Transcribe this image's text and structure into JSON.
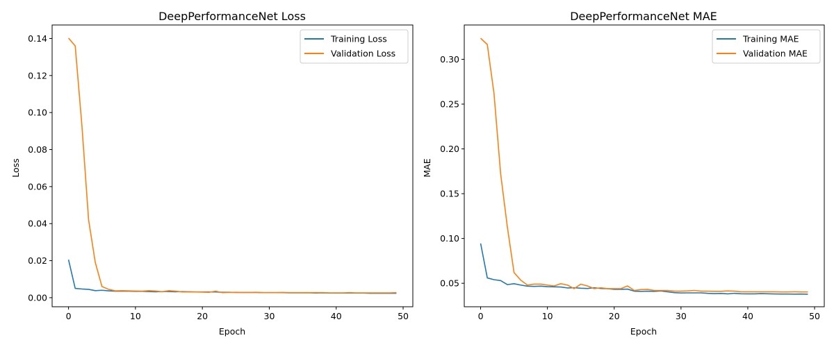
{
  "colors": {
    "training": "#1f77b4",
    "validation": "#ff7f0e"
  },
  "chart_data": [
    {
      "type": "line",
      "title": "DeepPerformanceNet Loss",
      "xlabel": "Epoch",
      "ylabel": "Loss",
      "xlim": [
        -2.45,
        51.45
      ],
      "ylim": [
        -0.0049,
        0.1473
      ],
      "xticks": [
        0,
        10,
        20,
        30,
        40,
        50
      ],
      "yticks": [
        0.0,
        0.02,
        0.04,
        0.06,
        0.08,
        0.1,
        0.12,
        0.14
      ],
      "ytick_labels": [
        "0.00",
        "0.02",
        "0.04",
        "0.06",
        "0.08",
        "0.10",
        "0.12",
        "0.14"
      ],
      "grid": false,
      "legend": "upper-right",
      "x": [
        0,
        1,
        2,
        3,
        4,
        5,
        6,
        7,
        8,
        9,
        10,
        11,
        12,
        13,
        14,
        15,
        16,
        17,
        18,
        19,
        20,
        21,
        22,
        23,
        24,
        25,
        26,
        27,
        28,
        29,
        30,
        31,
        32,
        33,
        34,
        35,
        36,
        37,
        38,
        39,
        40,
        41,
        42,
        43,
        44,
        45,
        46,
        47,
        48,
        49
      ],
      "series": [
        {
          "name": "Training Loss",
          "values": [
            0.0205,
            0.005,
            0.0047,
            0.0045,
            0.0038,
            0.004,
            0.0037,
            0.0035,
            0.0035,
            0.0035,
            0.0034,
            0.0034,
            0.0033,
            0.0032,
            0.0033,
            0.0033,
            0.0032,
            0.0033,
            0.0032,
            0.0031,
            0.0031,
            0.0031,
            0.0031,
            0.0029,
            0.0029,
            0.0028,
            0.0028,
            0.0028,
            0.0028,
            0.0027,
            0.0027,
            0.0027,
            0.0027,
            0.0026,
            0.0026,
            0.0026,
            0.0026,
            0.0025,
            0.0026,
            0.0025,
            0.0025,
            0.0025,
            0.0025,
            0.0025,
            0.0025,
            0.0024,
            0.0024,
            0.0024,
            0.0024,
            0.0024
          ]
        },
        {
          "name": "Validation Loss",
          "values": [
            0.1402,
            0.136,
            0.093,
            0.042,
            0.019,
            0.006,
            0.0045,
            0.0037,
            0.0038,
            0.0037,
            0.0036,
            0.0035,
            0.0038,
            0.0036,
            0.0032,
            0.0038,
            0.0035,
            0.0031,
            0.0031,
            0.0031,
            0.003,
            0.0029,
            0.0035,
            0.0027,
            0.0028,
            0.0029,
            0.0028,
            0.0028,
            0.0029,
            0.0027,
            0.0027,
            0.0027,
            0.0028,
            0.0027,
            0.0027,
            0.0027,
            0.0027,
            0.0027,
            0.0027,
            0.0026,
            0.0026,
            0.0026,
            0.0027,
            0.0026,
            0.0026,
            0.0026,
            0.0026,
            0.0026,
            0.0026,
            0.0027
          ]
        }
      ]
    },
    {
      "type": "line",
      "title": "DeepPerformanceNet MAE",
      "xlabel": "Epoch",
      "ylabel": "MAE",
      "xlim": [
        -2.45,
        51.45
      ],
      "ylim": [
        0.0238,
        0.3383
      ],
      "xticks": [
        0,
        10,
        20,
        30,
        40,
        50
      ],
      "yticks": [
        0.05,
        0.1,
        0.15,
        0.2,
        0.25,
        0.3
      ],
      "ytick_labels": [
        "0.05",
        "0.10",
        "0.15",
        "0.20",
        "0.25",
        "0.30"
      ],
      "grid": false,
      "legend": "upper-right",
      "x": [
        0,
        1,
        2,
        3,
        4,
        5,
        6,
        7,
        8,
        9,
        10,
        11,
        12,
        13,
        14,
        15,
        16,
        17,
        18,
        19,
        20,
        21,
        22,
        23,
        24,
        25,
        26,
        27,
        28,
        29,
        30,
        31,
        32,
        33,
        34,
        35,
        36,
        37,
        38,
        39,
        40,
        41,
        42,
        43,
        44,
        45,
        46,
        47,
        48,
        49
      ],
      "series": [
        {
          "name": "Training MAE",
          "values": [
            0.0945,
            0.056,
            0.054,
            0.053,
            0.0485,
            0.0495,
            0.048,
            0.0468,
            0.0465,
            0.0468,
            0.0462,
            0.046,
            0.0458,
            0.0448,
            0.045,
            0.0445,
            0.0442,
            0.045,
            0.0442,
            0.044,
            0.0432,
            0.0432,
            0.0435,
            0.0412,
            0.041,
            0.0412,
            0.041,
            0.0415,
            0.0405,
            0.0395,
            0.0392,
            0.0393,
            0.0393,
            0.0393,
            0.0388,
            0.0385,
            0.0387,
            0.0382,
            0.0388,
            0.0383,
            0.0382,
            0.0382,
            0.0385,
            0.0383,
            0.0381,
            0.038,
            0.038,
            0.0379,
            0.038,
            0.0378
          ]
        },
        {
          "name": "Validation MAE",
          "values": [
            0.3235,
            0.3165,
            0.262,
            0.172,
            0.113,
            0.062,
            0.0535,
            0.048,
            0.049,
            0.049,
            0.048,
            0.047,
            0.0495,
            0.048,
            0.044,
            0.049,
            0.047,
            0.044,
            0.045,
            0.044,
            0.044,
            0.044,
            0.047,
            0.042,
            0.043,
            0.0432,
            0.042,
            0.042,
            0.042,
            0.0412,
            0.0412,
            0.0415,
            0.042,
            0.0412,
            0.0412,
            0.041,
            0.041,
            0.0415,
            0.0412,
            0.0405,
            0.0405,
            0.0405,
            0.0405,
            0.0405,
            0.0405,
            0.0403,
            0.0403,
            0.0405,
            0.0403,
            0.0403
          ]
        }
      ]
    }
  ]
}
